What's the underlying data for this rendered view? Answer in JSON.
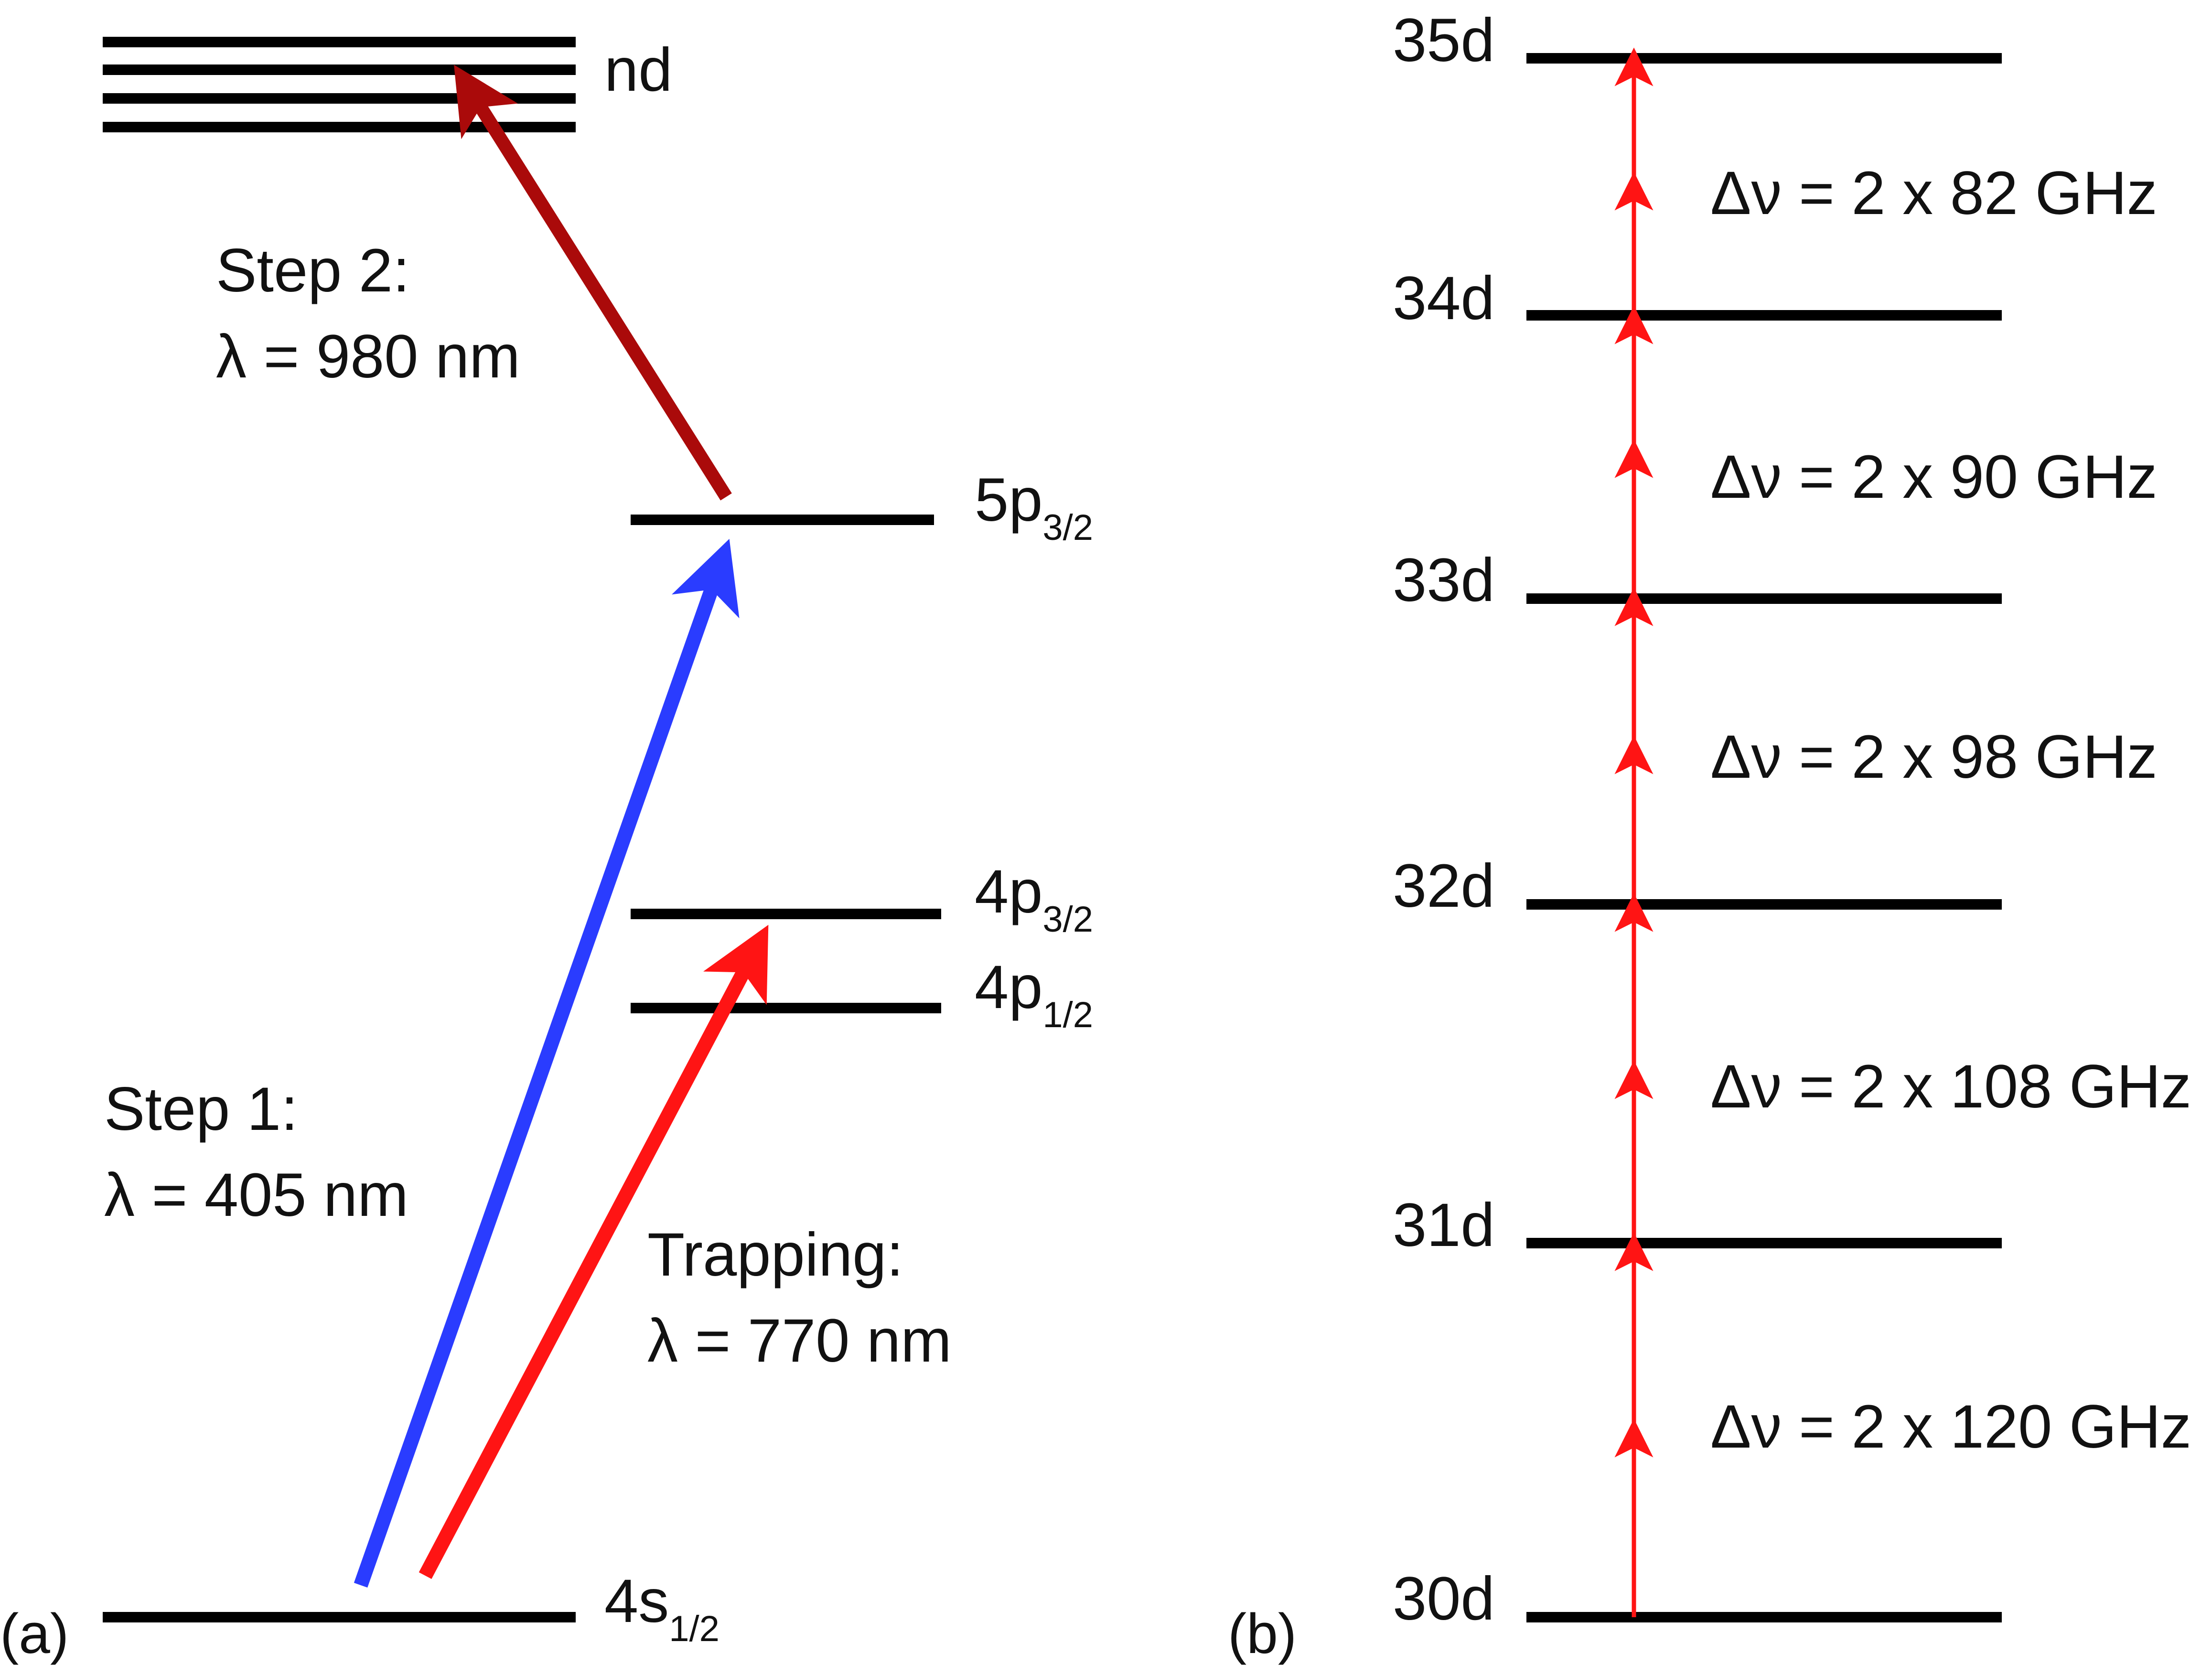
{
  "colors": {
    "line": "#000000",
    "blue": "#2a3cff",
    "red": "#ff1414",
    "darkred": "#aa0a0a"
  },
  "panel_a": {
    "panel_label": "(a)",
    "levels": {
      "nd": {
        "label": "nd"
      },
      "p5_32": {
        "base": "5p",
        "sub": "3/2"
      },
      "p4_32": {
        "base": "4p",
        "sub": "3/2"
      },
      "p4_12": {
        "base": "4p",
        "sub": "1/2"
      },
      "s4_12": {
        "base": "4s",
        "sub": "1/2"
      }
    },
    "step1": {
      "line1": "Step 1:",
      "line2": "λ = 405 nm"
    },
    "step2": {
      "line1": "Step 2:",
      "line2": "λ = 980 nm"
    },
    "trapping": {
      "line1": "Trapping:",
      "line2": "λ = 770 nm"
    }
  },
  "panel_b": {
    "panel_label": "(b)",
    "levels": [
      "30d",
      "31d",
      "32d",
      "33d",
      "34d",
      "35d"
    ],
    "spacings": [
      "Δν = 2 x 120 GHz",
      "Δν = 2 x 108 GHz",
      "Δν = 2 x 98 GHz",
      "Δν = 2 x 90 GHz",
      "Δν = 2 x 82 GHz"
    ]
  }
}
